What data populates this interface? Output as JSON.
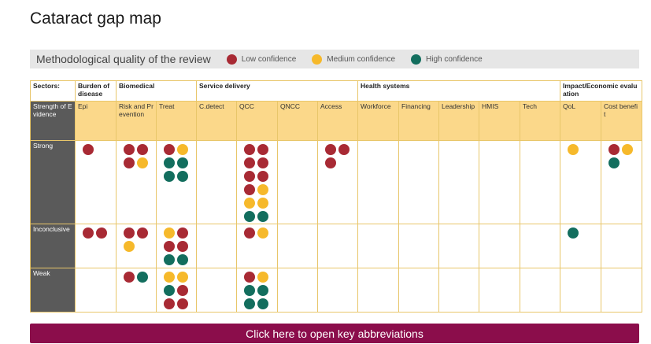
{
  "title": "Cataract gap map",
  "legend": {
    "title": "Methodological quality of the review",
    "items": [
      {
        "label": "Low confidence",
        "color": "#a82a34",
        "icon": "red-dot-icon"
      },
      {
        "label": "Medium confidence",
        "color": "#f6b92b",
        "icon": "yellow-dot-icon"
      },
      {
        "label": "High confidence",
        "color": "#136e5e",
        "icon": "green-dot-icon"
      }
    ]
  },
  "table": {
    "corner_label": "Sectors:",
    "groups": [
      {
        "label": "Burden of disease",
        "span": 1
      },
      {
        "label": "Biomedical",
        "span": 2
      },
      {
        "label": "Service delivery",
        "span": 4
      },
      {
        "label": "Health systems",
        "span": 5
      },
      {
        "label": "Impact/Economic evaluation",
        "span": 2
      }
    ],
    "sub_corner": "Strength of Evidence",
    "columns": [
      "Epi",
      "Risk and Prevention",
      "Treat",
      "C.detect",
      "QCC",
      "QNCC",
      "Access",
      "Workforce",
      "Financing",
      "Leadership",
      "HMIS",
      "Tech",
      "QoL",
      "Cost benefit"
    ],
    "rows": [
      {
        "label": "Strong",
        "cells": [
          [
            "low"
          ],
          [
            "low",
            "low",
            "low",
            "medium"
          ],
          [
            "low",
            "medium",
            "high",
            "high",
            "high",
            "high"
          ],
          [],
          [
            "low",
            "low",
            "low",
            "low",
            "low",
            "low",
            "low",
            "medium",
            "medium",
            "medium",
            "high",
            "high"
          ],
          [],
          [
            "low",
            "low",
            "low"
          ],
          [],
          [],
          [],
          [],
          [],
          [
            "medium"
          ],
          [
            "low",
            "medium",
            "high"
          ]
        ]
      },
      {
        "label": "Inconclusive",
        "cells": [
          [
            "low",
            "low"
          ],
          [
            "low",
            "low",
            "medium"
          ],
          [
            "medium",
            "low",
            "low",
            "low",
            "high",
            "high"
          ],
          [],
          [
            "low",
            "medium"
          ],
          [],
          [],
          [],
          [],
          [],
          [],
          [],
          [
            "high"
          ],
          []
        ]
      },
      {
        "label": "Weak",
        "cells": [
          [],
          [
            "low",
            "high"
          ],
          [
            "medium",
            "medium",
            "high",
            "low",
            "low",
            "low"
          ],
          [],
          [
            "low",
            "medium",
            "high",
            "high",
            "high",
            "high"
          ],
          [],
          [],
          [],
          [],
          [],
          [],
          [],
          [],
          []
        ]
      }
    ]
  },
  "abbreviations_button": "Click here to open key abbreviations"
}
